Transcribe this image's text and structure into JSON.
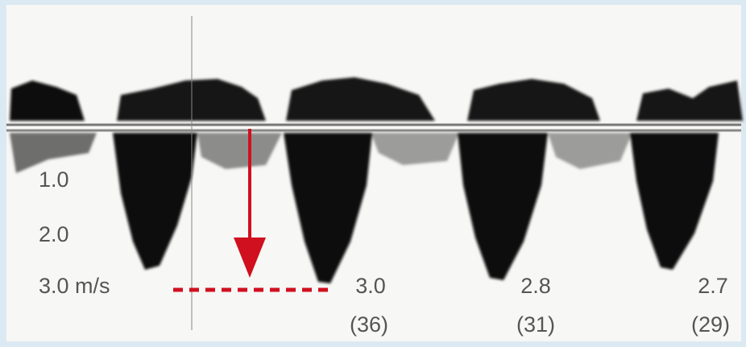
{
  "scale": [
    "1.0",
    "2.0",
    "3.0 m/s"
  ],
  "measurements": [
    {
      "velocity": "3.0",
      "gradient": "(36)"
    },
    {
      "velocity": "2.8",
      "gradient": "(31)"
    },
    {
      "velocity": "2.7",
      "gradient": "(29)"
    }
  ]
}
